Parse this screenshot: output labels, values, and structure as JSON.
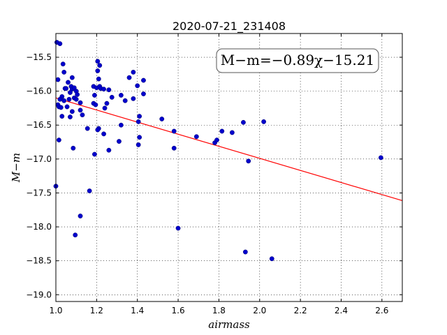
{
  "chart_data": {
    "type": "scatter",
    "title": "2020-07-21_231408",
    "xlabel": "airmass",
    "ylabel": "M−m",
    "annotation": "M−m=−0.89χ−15.21",
    "xlim": [
      1.0,
      2.7
    ],
    "ylim": [
      -19.1,
      -15.15
    ],
    "xticks": [
      1.0,
      1.2,
      1.4,
      1.6,
      1.8,
      2.0,
      2.2,
      2.4,
      2.6
    ],
    "xtick_labels": [
      "1.0",
      "1.2",
      "1.4",
      "1.6",
      "1.8",
      "2.0",
      "2.2",
      "2.4",
      "2.6"
    ],
    "yticks": [
      -15.5,
      -16.0,
      -16.5,
      -17.0,
      -17.5,
      -18.0,
      -18.5,
      -19.0
    ],
    "ytick_labels": [
      "−15.5",
      "−16.0",
      "−16.5",
      "−17.0",
      "−17.5",
      "−18.0",
      "−18.5",
      "−19.0"
    ],
    "grid": true,
    "point_color": "#0000cc",
    "line_color": "#ff0000",
    "fit_line": {
      "slope": -0.89,
      "intercept": -15.21,
      "x_range": [
        1.0,
        2.7
      ]
    },
    "points": [
      [
        1.005,
        -15.28
      ],
      [
        1.02,
        -15.3
      ],
      [
        1.035,
        -15.6
      ],
      [
        1.04,
        -15.72
      ],
      [
        1.01,
        -15.83
      ],
      [
        1.045,
        -15.96
      ],
      [
        1.05,
        -15.96
      ],
      [
        1.06,
        -15.87
      ],
      [
        1.075,
        -15.93
      ],
      [
        1.08,
        -15.8
      ],
      [
        1.08,
        -15.97
      ],
      [
        1.09,
        -15.95
      ],
      [
        1.1,
        -16.0
      ],
      [
        1.07,
        -16.02
      ],
      [
        1.065,
        -16.12
      ],
      [
        1.09,
        -16.1
      ],
      [
        1.1,
        -16.12
      ],
      [
        1.105,
        -16.05
      ],
      [
        1.03,
        -16.08
      ],
      [
        1.02,
        -16.12
      ],
      [
        1.04,
        -16.14
      ],
      [
        1.01,
        -16.2
      ],
      [
        1.015,
        -16.23
      ],
      [
        1.025,
        -16.24
      ],
      [
        1.055,
        -16.23
      ],
      [
        1.08,
        -16.3
      ],
      [
        1.07,
        -16.38
      ],
      [
        1.03,
        -16.37
      ],
      [
        1.12,
        -16.17
      ],
      [
        1.12,
        -16.28
      ],
      [
        1.13,
        -16.35
      ],
      [
        1.015,
        -16.72
      ],
      [
        1.085,
        -16.84
      ],
      [
        1.0,
        -17.4
      ],
      [
        1.185,
        -15.93
      ],
      [
        1.2,
        -15.95
      ],
      [
        1.205,
        -15.56
      ],
      [
        1.215,
        -15.62
      ],
      [
        1.205,
        -15.7
      ],
      [
        1.21,
        -15.82
      ],
      [
        1.215,
        -15.93
      ],
      [
        1.22,
        -15.96
      ],
      [
        1.235,
        -15.97
      ],
      [
        1.26,
        -15.98
      ],
      [
        1.19,
        -16.06
      ],
      [
        1.185,
        -16.18
      ],
      [
        1.195,
        -16.2
      ],
      [
        1.275,
        -16.09
      ],
      [
        1.32,
        -16.06
      ],
      [
        1.34,
        -16.14
      ],
      [
        1.25,
        -16.18
      ],
      [
        1.24,
        -16.25
      ],
      [
        1.36,
        -15.8
      ],
      [
        1.38,
        -15.72
      ],
      [
        1.4,
        -15.92
      ],
      [
        1.43,
        -15.84
      ],
      [
        1.43,
        -16.04
      ],
      [
        1.38,
        -16.11
      ],
      [
        1.41,
        -16.37
      ],
      [
        1.405,
        -16.45
      ],
      [
        1.41,
        -16.68
      ],
      [
        1.405,
        -16.79
      ],
      [
        1.32,
        -16.5
      ],
      [
        1.31,
        -16.74
      ],
      [
        1.26,
        -16.87
      ],
      [
        1.235,
        -16.63
      ],
      [
        1.21,
        -16.55
      ],
      [
        1.205,
        -16.57
      ],
      [
        1.155,
        -16.55
      ],
      [
        1.19,
        -16.93
      ],
      [
        1.165,
        -17.47
      ],
      [
        1.12,
        -17.84
      ],
      [
        1.095,
        -18.12
      ],
      [
        1.52,
        -16.41
      ],
      [
        1.58,
        -16.59
      ],
      [
        1.58,
        -16.84
      ],
      [
        1.6,
        -18.02
      ],
      [
        1.69,
        -16.67
      ],
      [
        1.78,
        -16.76
      ],
      [
        1.79,
        -16.72
      ],
      [
        1.815,
        -16.59
      ],
      [
        1.865,
        -16.61
      ],
      [
        1.92,
        -16.46
      ],
      [
        1.945,
        -17.03
      ],
      [
        1.93,
        -18.37
      ],
      [
        2.02,
        -16.45
      ],
      [
        2.06,
        -18.47
      ],
      [
        2.595,
        -16.98
      ]
    ]
  }
}
